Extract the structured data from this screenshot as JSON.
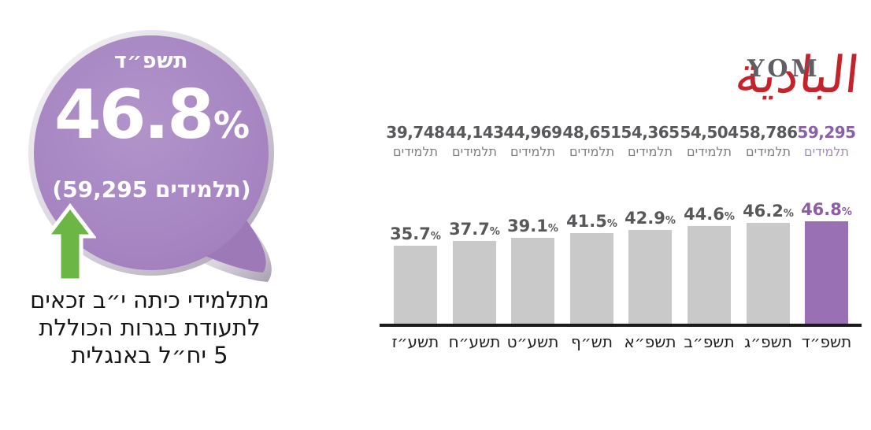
{
  "logo": {
    "arabic": "البادية",
    "latin": "YOM"
  },
  "highlight": {
    "year": "תשפ״ד",
    "value": "46.8",
    "percent_sign": "%",
    "students_note": "(59,295 תלמידים)",
    "caption_lines": [
      "מתלמידי כיתה י״ב זכאים",
      "לתעודת בגרות הכוללת",
      "5 יח״ל באנגלית"
    ]
  },
  "chart_data": {
    "type": "bar",
    "title": "",
    "xlabel": "",
    "ylabel": "",
    "categories": [
      "תשע״ז",
      "תשע״ח",
      "תשע״ט",
      "תש״ף",
      "תשפ״א",
      "תשפ״ב",
      "תשפ״ג",
      "תשפ״ד"
    ],
    "values": [
      35.7,
      37.7,
      39.1,
      41.5,
      42.9,
      44.6,
      46.2,
      46.8
    ],
    "value_labels": [
      "35.7",
      "37.7",
      "39.1",
      "41.5",
      "42.9",
      "44.6",
      "46.2",
      "46.8"
    ],
    "percent_sign": "%",
    "students": [
      "39,748",
      "44,143",
      "44,969",
      "48,651",
      "54,365",
      "54,504",
      "58,786",
      "59,295"
    ],
    "students_unit": "תלמידים",
    "highlight_index": 7,
    "ylim": [
      0,
      50
    ],
    "grid": false,
    "legend": false,
    "colors": {
      "bar": "#c9c9c9",
      "bar_highlight": "#9a70b4",
      "value_label": "#58585b",
      "value_label_highlight": "#8e5ca6",
      "students_label": "#58585b",
      "students_unit_color": "#7f7f83",
      "students_label_highlight": "#8a61a8",
      "students_unit_highlight": "#a78ac0",
      "axis": "#1b1b1b",
      "category_label": "#1e1e1e"
    }
  },
  "accent_colors": {
    "bubble_purple": "#a181bd",
    "arrow_green": "#6cb646",
    "logo_red": "#c4232c"
  }
}
